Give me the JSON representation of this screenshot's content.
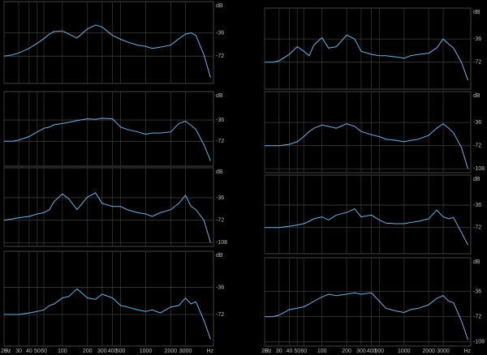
{
  "chart_data": [
    {
      "type": "line",
      "y_label": "dB",
      "xscale": "log",
      "grid": true,
      "x": [
        20,
        25,
        30,
        40,
        50,
        60,
        70,
        80,
        100,
        120,
        150,
        200,
        250,
        300,
        400,
        500,
        600,
        800,
        1000,
        1200,
        1500,
        2000,
        2500,
        3000,
        3500,
        4000,
        5000,
        6000
      ],
      "series": [
        {
          "color": "#6ab4e6",
          "values": [
            -72,
            -70,
            -67,
            -60,
            -52,
            -45,
            -38,
            -34,
            -33,
            -38,
            -44,
            -30,
            -24,
            -27,
            -40,
            -46,
            -50,
            -55,
            -57,
            -60,
            -58,
            -55,
            -45,
            -38,
            -36,
            -40,
            -70,
            -105
          ]
        }
      ],
      "xlim": [
        20,
        6500
      ],
      "ylim": [
        -114,
        12
      ],
      "yticks": [
        -36,
        -72
      ],
      "xticks": [
        20,
        30,
        40,
        50,
        60,
        100,
        200,
        300,
        400,
        500,
        1000,
        2000,
        3000
      ]
    },
    {
      "type": "line",
      "y_label": "dB",
      "xscale": "log",
      "grid": true,
      "x": [
        20,
        25,
        30,
        40,
        50,
        60,
        70,
        80,
        100,
        120,
        150,
        200,
        250,
        300,
        400,
        500,
        600,
        800,
        1000,
        1200,
        1500,
        2000,
        2500,
        3000,
        3500,
        4000,
        5000,
        6000
      ],
      "series": [
        {
          "color": "#6ab4e6",
          "values": [
            -72,
            -72,
            -70,
            -64,
            -56,
            -50,
            -48,
            -44,
            -42,
            -40,
            -37,
            -34,
            -35,
            -33,
            -34,
            -48,
            -52,
            -56,
            -60,
            -58,
            -58,
            -56,
            -42,
            -38,
            -45,
            -52,
            -78,
            -105
          ]
        }
      ],
      "xlim": [
        20,
        6500
      ],
      "ylim": [
        -114,
        12
      ],
      "yticks": [
        -36,
        -72
      ],
      "xticks": [
        20,
        30,
        40,
        50,
        60,
        100,
        200,
        300,
        400,
        500,
        1000,
        2000,
        3000
      ]
    },
    {
      "type": "line",
      "y_label": "dB",
      "xscale": "log",
      "grid": true,
      "x": [
        20,
        25,
        30,
        40,
        50,
        60,
        70,
        80,
        100,
        120,
        150,
        200,
        250,
        300,
        400,
        500,
        600,
        800,
        1000,
        1200,
        1500,
        2000,
        2500,
        3000,
        3500,
        4000,
        5000,
        6000
      ],
      "series": [
        {
          "color": "#6ab4e6",
          "values": [
            -72,
            -70,
            -68,
            -66,
            -62,
            -60,
            -55,
            -42,
            -30,
            -38,
            -55,
            -35,
            -28,
            -45,
            -50,
            -50,
            -55,
            -60,
            -62,
            -66,
            -60,
            -55,
            -45,
            -32,
            -50,
            -55,
            -72,
            -108
          ]
        }
      ],
      "xlim": [
        20,
        6500
      ],
      "ylim": [
        -114,
        12
      ],
      "yticks": [
        -36,
        -72,
        -108
      ],
      "xticks": [
        20,
        30,
        40,
        50,
        60,
        100,
        200,
        300,
        400,
        500,
        1000,
        2000,
        3000
      ]
    },
    {
      "type": "line",
      "y_label": "dB",
      "x_label": "Hz",
      "xscale": "log",
      "grid": true,
      "x": [
        20,
        25,
        30,
        40,
        50,
        60,
        70,
        80,
        100,
        120,
        150,
        200,
        250,
        300,
        400,
        500,
        600,
        800,
        1000,
        1200,
        1500,
        2000,
        2500,
        3000,
        3500,
        4000,
        5000,
        6000
      ],
      "series": [
        {
          "color": "#6ab4e6",
          "values": [
            -72,
            -72,
            -72,
            -70,
            -68,
            -66,
            -60,
            -58,
            -50,
            -48,
            -38,
            -50,
            -52,
            -45,
            -50,
            -60,
            -62,
            -66,
            -68,
            -66,
            -70,
            -62,
            -60,
            -50,
            -58,
            -55,
            -80,
            -105
          ]
        }
      ],
      "xlim": [
        20,
        6500
      ],
      "ylim": [
        -114,
        12
      ],
      "yticks": [
        -36,
        -72
      ],
      "xticks": [
        20,
        30,
        40,
        50,
        60,
        100,
        200,
        300,
        400,
        500,
        1000,
        2000,
        3000
      ]
    },
    {
      "type": "line",
      "y_label": "dB",
      "xscale": "log",
      "grid": true,
      "x": [
        20,
        25,
        30,
        40,
        50,
        60,
        70,
        80,
        100,
        120,
        150,
        200,
        250,
        300,
        400,
        500,
        600,
        800,
        1000,
        1200,
        1500,
        2000,
        2500,
        3000,
        3500,
        4000,
        5000,
        6000
      ],
      "series": [
        {
          "color": "#6ab4e6",
          "values": [
            -72,
            -72,
            -70,
            -60,
            -48,
            -55,
            -62,
            -45,
            -34,
            -50,
            -48,
            -30,
            -36,
            -55,
            -60,
            -62,
            -62,
            -64,
            -66,
            -62,
            -60,
            -58,
            -50,
            -36,
            -44,
            -50,
            -72,
            -100
          ]
        }
      ],
      "xlim": [
        20,
        6500
      ],
      "ylim": [
        -114,
        12
      ],
      "yticks": [
        -36,
        -72
      ],
      "xticks": [
        20,
        30,
        40,
        50,
        60,
        100,
        200,
        300,
        400,
        500,
        1000,
        2000,
        3000
      ]
    },
    {
      "type": "line",
      "y_label": "dB",
      "xscale": "log",
      "grid": true,
      "x": [
        20,
        25,
        30,
        40,
        50,
        60,
        70,
        80,
        100,
        120,
        150,
        200,
        250,
        300,
        400,
        500,
        600,
        800,
        1000,
        1200,
        1500,
        2000,
        2500,
        3000,
        3500,
        4000,
        5000,
        6000
      ],
      "series": [
        {
          "color": "#6ab4e6",
          "values": [
            -72,
            -72,
            -72,
            -70,
            -66,
            -58,
            -50,
            -45,
            -40,
            -42,
            -45,
            -38,
            -42,
            -50,
            -55,
            -58,
            -62,
            -64,
            -66,
            -64,
            -62,
            -56,
            -45,
            -38,
            -45,
            -52,
            -75,
            -108
          ]
        }
      ],
      "xlim": [
        20,
        6500
      ],
      "ylim": [
        -114,
        12
      ],
      "yticks": [
        -36,
        -72,
        -108
      ],
      "xticks": [
        20,
        30,
        40,
        50,
        60,
        100,
        200,
        300,
        400,
        500,
        1000,
        2000,
        3000
      ]
    },
    {
      "type": "line",
      "y_label": "dB",
      "xscale": "log",
      "grid": true,
      "x": [
        20,
        25,
        30,
        40,
        50,
        60,
        70,
        80,
        100,
        120,
        150,
        200,
        250,
        300,
        400,
        500,
        600,
        800,
        1000,
        1200,
        1500,
        2000,
        2500,
        3000,
        3500,
        4000,
        5000,
        6000
      ],
      "series": [
        {
          "color": "#6ab4e6",
          "values": [
            -72,
            -72,
            -72,
            -70,
            -68,
            -66,
            -62,
            -58,
            -55,
            -60,
            -52,
            -48,
            -42,
            -55,
            -52,
            -60,
            -65,
            -66,
            -66,
            -64,
            -62,
            -58,
            -44,
            -55,
            -58,
            -56,
            -80,
            -100
          ]
        }
      ],
      "xlim": [
        20,
        6500
      ],
      "ylim": [
        -114,
        12
      ],
      "yticks": [
        -36,
        -72
      ],
      "xticks": [
        20,
        30,
        40,
        50,
        60,
        100,
        200,
        300,
        400,
        500,
        1000,
        2000,
        3000
      ]
    },
    {
      "type": "line",
      "y_label": "dB",
      "x_label": "Hz",
      "xscale": "log",
      "grid": true,
      "x": [
        20,
        25,
        30,
        40,
        50,
        60,
        70,
        80,
        100,
        120,
        150,
        200,
        250,
        300,
        400,
        500,
        600,
        800,
        1000,
        1200,
        1500,
        2000,
        2500,
        3000,
        3500,
        4000,
        5000,
        6000
      ],
      "series": [
        {
          "color": "#6ab4e6",
          "values": [
            -72,
            -72,
            -70,
            -62,
            -60,
            -58,
            -54,
            -50,
            -44,
            -40,
            -42,
            -40,
            -38,
            -40,
            -38,
            -50,
            -60,
            -64,
            -66,
            -62,
            -60,
            -55,
            -46,
            -42,
            -50,
            -52,
            -78,
            -105
          ]
        }
      ],
      "xlim": [
        20,
        6500
      ],
      "ylim": [
        -114,
        12
      ],
      "yticks": [
        -36,
        -72,
        -108
      ],
      "xticks": [
        20,
        30,
        40,
        50,
        60,
        100,
        200,
        300,
        400,
        500,
        1000,
        2000,
        3000
      ]
    }
  ]
}
